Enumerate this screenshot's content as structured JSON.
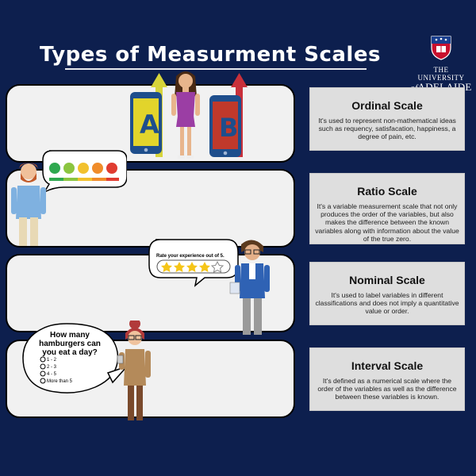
{
  "title": "Types of Measurment Scales",
  "logo": {
    "line1": "THE UNIVERSITY",
    "line2_prefix": "of",
    "line2_name": "ADELAIDE"
  },
  "panel1": {
    "letter_a": "A",
    "letter_b": "B"
  },
  "panel3": {
    "bubble_text": "Rate your experience out of 5.",
    "stars_filled": 4,
    "stars_total": 5
  },
  "panel4": {
    "question_line1": "How many",
    "question_line2": "hamburgers can",
    "question_line3": "you eat a day?",
    "options": [
      "1 - 2",
      "2 - 3",
      "4 - 5",
      "More than 5"
    ]
  },
  "cards": [
    {
      "title": "Ordinal Scale",
      "body": "It's used to represent non-mathematical ideas such as requency, satisfacation, happiness, a degree of pain, etc."
    },
    {
      "title": "Ratio Scale",
      "body": "It's a variable measurement scale that not only produces the order of the variables, but also makes the difference between the known variables along with information about the value of the true zero."
    },
    {
      "title": "Nominal Scale",
      "body": "It's used to label variables in different classifications and does not imply a quantitative value or order."
    },
    {
      "title": "Interval Scale",
      "body": "It's defined as a numerical scale where the order of the variables as well as the difference between these variables is known."
    }
  ],
  "colors": {
    "background": "#0d1f4e",
    "panel": "#f1f1f1",
    "card": "#dedede",
    "phone_a": "#1e4e8c",
    "phone_b": "#c0392b",
    "arrow_yellow": "#d7d43a",
    "arrow_red": "#c9303a"
  },
  "icons": [
    "university-crest-icon",
    "phone-icon",
    "arrow-up-icon",
    "emoji-rating-icon",
    "star-icon"
  ]
}
